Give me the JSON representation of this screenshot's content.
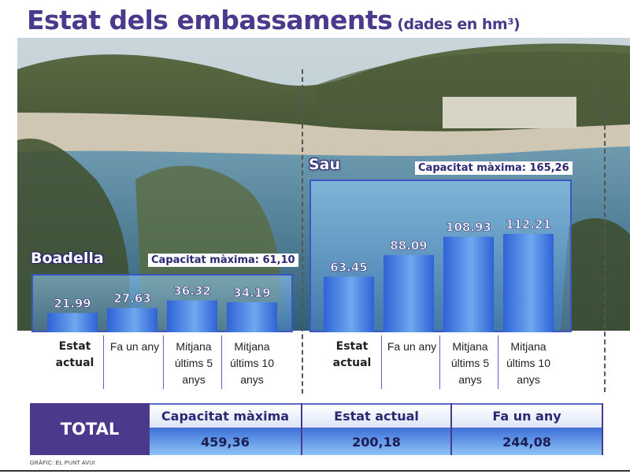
{
  "title": {
    "main": "Estat dels embassaments",
    "sub": "(dades en hm³)"
  },
  "colors": {
    "accent": "#4b3a8c",
    "bar": "#2f63d6",
    "bar_light": "#6fa7ef"
  },
  "categories": [
    {
      "l1": "Estat",
      "l2": "actual",
      "l3": ""
    },
    {
      "l1": "Fa un any",
      "l2": "",
      "l3": ""
    },
    {
      "l1": "Mitjana",
      "l2": "últims 5",
      "l3": "anys"
    },
    {
      "l1": "Mitjana",
      "l2": "últims 10",
      "l3": "anys"
    }
  ],
  "chart_data": [
    {
      "type": "bar",
      "title": "Boadella",
      "subtitle": "Capacitat màxima: 61,10",
      "categories": [
        "Estat actual",
        "Fa un any",
        "Mitjana últims 5 anys",
        "Mitjana últims 10 anys"
      ],
      "values": [
        21.99,
        27.63,
        36.32,
        34.19
      ],
      "labels": [
        "21.99",
        "27.63",
        "36.32",
        "34.19"
      ],
      "ylim": [
        0,
        61.1
      ]
    },
    {
      "type": "bar",
      "title": "Sau",
      "subtitle": "Capacitat màxima: 165,26",
      "categories": [
        "Estat actual",
        "Fa un any",
        "Mitjana últims 5 anys",
        "Mitjana últims 10 anys"
      ],
      "values": [
        63.45,
        88.09,
        108.93,
        112.21
      ],
      "labels": [
        "63.45",
        "88.09",
        "108.93",
        "112.21"
      ],
      "ylim": [
        0,
        165.26
      ]
    }
  ],
  "total": {
    "label": "TOTAL",
    "columns": [
      {
        "header": "Capacitat màxima",
        "value": "459,36"
      },
      {
        "header": "Estat actual",
        "value": "200,18"
      },
      {
        "header": "Fa un any",
        "value": "244,08"
      }
    ]
  },
  "credit": "GRÀFIC: EL PUNT AVUI"
}
